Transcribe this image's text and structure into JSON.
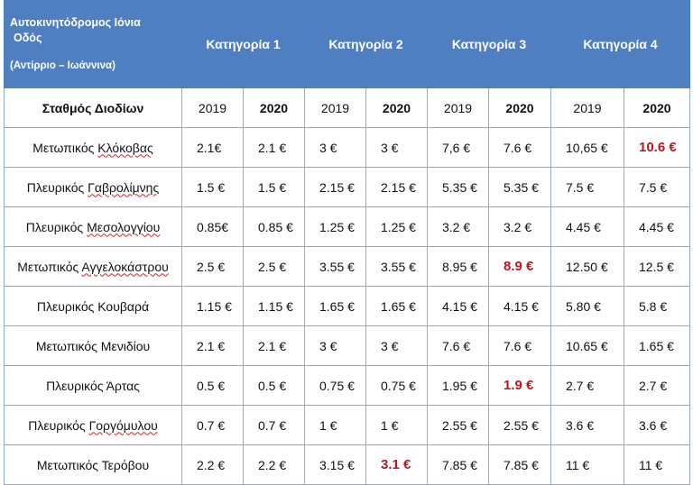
{
  "header": {
    "road_line1": "Αυτοκινητόδρομος Ιόνια",
    "road_line2": "Οδός",
    "road_line3": "(Αντίρριο – Ιωάννινα)",
    "categories": [
      "Κατηγορία  1",
      "Κατηγορία 2",
      "Κατηγορία 3",
      "Κατηγορία 4"
    ]
  },
  "subheader": {
    "station_label": "Σταθμός Διοδίων",
    "years": [
      "2019",
      "2020",
      "2019",
      "2020",
      "2019",
      "2020",
      "2019",
      "2020"
    ]
  },
  "rows": [
    {
      "a": "Μετωπικός ",
      "b": "Κλόκοβας",
      "v": [
        "2.1€",
        "2.1 €",
        "3 €",
        "3 €",
        "7,6 €",
        "7.6 €",
        "10,65 €",
        "10.6 €"
      ]
    },
    {
      "a": "Πλευρικός ",
      "b": "Γαβρολίμνης",
      "v": [
        "1.5 €",
        "1.5 €",
        "2.15 €",
        "2.15 €",
        "5.35 €",
        "5.35 €",
        "7.5  €",
        "7.5 €"
      ]
    },
    {
      "a": "Πλευρικός ",
      "b": "Μεσολογγίου",
      "v": [
        "0.85€",
        "0.85 €",
        "1.25 €",
        "1.25 €",
        "3.2 €",
        "3.2 €",
        "4.45 €",
        "4.45 €"
      ]
    },
    {
      "a": "Μετωπικός ",
      "b": "Αγγελοκάστρου",
      "v": [
        "2.5 €",
        "2.5 €",
        "3.55 €",
        "3.55 €",
        "8.95 €",
        "8.9 €",
        "12.50 €",
        "12.5 €"
      ]
    },
    {
      "a": "Πλευρικός Κουβαρά",
      "b": "",
      "v": [
        "1.15 €",
        "1.15 €",
        "1.65 €",
        "1.65 €",
        "4.15 €",
        "4.15 €",
        "5.80 €",
        "5.8 €"
      ]
    },
    {
      "a": "Μετωπικός Μενιδίου",
      "b": "",
      "v": [
        "2.1 €",
        "2.1 €",
        "3 €",
        "3 €",
        "7.6 €",
        "7.6 €",
        "10.65 €",
        "1.65 €"
      ]
    },
    {
      "a": "Πλευρικός Άρτας",
      "b": "",
      "v": [
        "0.5 €",
        "0.5 €",
        "0.75 €",
        "0.75 €",
        "1.95 €",
        "1.9 €",
        "2.7 €",
        "2.7 €"
      ]
    },
    {
      "a": "Πλευρικός ",
      "b": "Γοργόμυλου",
      "v": [
        "0.7 €",
        "0.7 €",
        "1 €",
        "1 €",
        "2.55 €",
        "2.55 €",
        "3.6 €",
        "3.6 €"
      ]
    },
    {
      "a": "Μετωπικός Τερόβου",
      "b": "",
      "v": [
        "2.2 €",
        "2.2 €",
        "3.15 €",
        "3.1 €",
        "7.85 €",
        "7.85 €",
        "11 €",
        "11 €"
      ]
    }
  ],
  "highlight_color": "#c0141b",
  "header_color": "#4f7fc1"
}
